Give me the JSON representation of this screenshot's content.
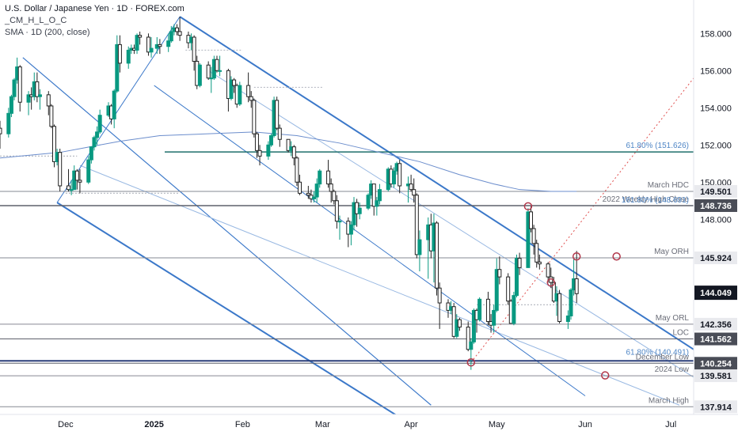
{
  "header": {
    "title": "U.S. Dollar / Japanese Yen · 1D · FOREX.com",
    "indicator1": "_CM_H_L_O_C",
    "indicator2": "SMA · 1D (200, close)"
  },
  "chart_data": {
    "type": "candlestick",
    "symbol": "USDJPY",
    "timeframe": "1D",
    "ylim": [
      137.5,
      159.8
    ],
    "xlim": [
      "2024-11-08",
      "2025-07-09"
    ],
    "x_ticks": [
      {
        "label": "Dec",
        "date": "2024-12-01",
        "bold": false
      },
      {
        "label": "2025",
        "date": "2025-01-01",
        "bold": true
      },
      {
        "label": "Feb",
        "date": "2025-02-01",
        "bold": false
      },
      {
        "label": "Mar",
        "date": "2025-03-01",
        "bold": false
      },
      {
        "label": "Apr",
        "date": "2025-04-01",
        "bold": false
      },
      {
        "label": "May",
        "date": "2025-05-01",
        "bold": false
      },
      {
        "label": "Jun",
        "date": "2025-06-01",
        "bold": false
      },
      {
        "label": "Jul",
        "date": "2025-07-01",
        "bold": false
      }
    ],
    "y_ticks": [
      158.0,
      156.0,
      154.0,
      152.0,
      150.0,
      148.0
    ],
    "y_tick_labels": [
      "158.000",
      "156.000",
      "154.000",
      "152.000",
      "150.000",
      "148.000"
    ],
    "candles": [
      [
        "2024-11-08",
        152.9,
        153.3,
        151.8,
        152.6
      ],
      [
        "2024-11-11",
        152.6,
        154.0,
        152.4,
        153.7
      ],
      [
        "2024-11-12",
        153.7,
        154.7,
        153.5,
        154.6
      ],
      [
        "2024-11-13",
        154.6,
        155.6,
        154.4,
        155.5
      ],
      [
        "2024-11-14",
        155.5,
        156.7,
        155.3,
        156.2
      ],
      [
        "2024-11-15",
        156.2,
        156.3,
        153.8,
        154.3
      ],
      [
        "2024-11-18",
        154.3,
        154.9,
        153.6,
        154.7
      ],
      [
        "2024-11-19",
        154.7,
        155.1,
        153.9,
        154.6
      ],
      [
        "2024-11-20",
        154.6,
        155.9,
        154.4,
        155.4
      ],
      [
        "2024-11-21",
        155.4,
        155.9,
        154.3,
        154.6
      ],
      [
        "2024-11-22",
        154.6,
        155.0,
        153.9,
        154.7
      ],
      [
        "2024-11-25",
        154.7,
        154.9,
        153.6,
        154.1
      ],
      [
        "2024-11-26",
        154.1,
        154.2,
        152.9,
        153.0
      ],
      [
        "2024-11-27",
        153.0,
        153.1,
        150.8,
        151.1
      ],
      [
        "2024-11-28",
        151.1,
        151.8,
        150.9,
        151.6
      ],
      [
        "2024-11-29",
        151.6,
        151.8,
        149.5,
        149.8
      ],
      [
        "2024-12-02",
        149.8,
        150.7,
        149.5,
        149.6
      ],
      [
        "2024-12-03",
        149.6,
        150.1,
        149.3,
        149.6
      ],
      [
        "2024-12-04",
        149.6,
        150.9,
        149.6,
        150.6
      ],
      [
        "2024-12-05",
        150.6,
        150.7,
        149.6,
        150.1
      ],
      [
        "2024-12-06",
        150.1,
        150.7,
        149.4,
        150.0
      ],
      [
        "2024-12-09",
        150.0,
        151.4,
        149.9,
        151.2
      ],
      [
        "2024-12-10",
        151.2,
        151.9,
        151.0,
        151.9
      ],
      [
        "2024-12-11",
        151.9,
        152.5,
        151.7,
        152.4
      ],
      [
        "2024-12-12",
        152.4,
        153.0,
        152.0,
        152.7
      ],
      [
        "2024-12-13",
        152.7,
        153.9,
        152.6,
        153.6
      ],
      [
        "2024-12-16",
        153.6,
        154.3,
        153.5,
        154.1
      ],
      [
        "2024-12-17",
        154.1,
        154.2,
        153.1,
        153.4
      ],
      [
        "2024-12-18",
        153.4,
        155.0,
        152.9,
        154.9
      ],
      [
        "2024-12-19",
        154.9,
        157.9,
        154.8,
        157.4
      ],
      [
        "2024-12-20",
        157.4,
        157.9,
        155.9,
        156.4
      ],
      [
        "2024-12-23",
        156.4,
        157.3,
        156.1,
        157.1
      ],
      [
        "2024-12-24",
        157.1,
        157.4,
        156.9,
        157.2
      ],
      [
        "2024-12-25",
        157.2,
        157.4,
        156.9,
        157.1
      ],
      [
        "2024-12-26",
        157.1,
        158.0,
        156.9,
        157.9
      ],
      [
        "2024-12-27",
        157.9,
        158.1,
        157.4,
        157.8
      ],
      [
        "2024-12-30",
        157.8,
        158.0,
        156.8,
        157.0
      ],
      [
        "2024-12-31",
        157.0,
        157.8,
        156.7,
        157.2
      ],
      [
        "2025-01-02",
        157.2,
        157.8,
        156.9,
        157.4
      ],
      [
        "2025-01-03",
        157.4,
        157.7,
        156.9,
        157.3
      ],
      [
        "2025-01-06",
        157.3,
        158.0,
        157.0,
        157.6
      ],
      [
        "2025-01-07",
        157.6,
        158.4,
        157.5,
        158.1
      ],
      [
        "2025-01-08",
        158.1,
        158.5,
        157.9,
        158.3
      ],
      [
        "2025-01-09",
        158.3,
        158.5,
        157.9,
        158.1
      ],
      [
        "2025-01-10",
        158.1,
        158.9,
        157.6,
        157.9
      ],
      [
        "2025-01-13",
        157.9,
        158.1,
        157.2,
        157.5
      ],
      [
        "2025-01-14",
        157.5,
        158.0,
        157.1,
        157.8
      ],
      [
        "2025-01-15",
        157.8,
        157.9,
        156.0,
        156.5
      ],
      [
        "2025-01-16",
        156.5,
        156.8,
        155.0,
        155.2
      ],
      [
        "2025-01-17",
        155.2,
        156.4,
        155.1,
        156.3
      ],
      [
        "2025-01-20",
        156.3,
        156.5,
        155.5,
        155.6
      ],
      [
        "2025-01-21",
        155.6,
        156.2,
        154.8,
        155.6
      ],
      [
        "2025-01-22",
        155.6,
        156.8,
        155.5,
        156.6
      ],
      [
        "2025-01-23",
        156.6,
        156.8,
        155.9,
        156.0
      ],
      [
        "2025-01-24",
        156.0,
        156.8,
        155.7,
        156.0
      ],
      [
        "2025-01-27",
        156.0,
        156.1,
        153.8,
        154.5
      ],
      [
        "2025-01-28",
        154.5,
        155.7,
        154.4,
        155.5
      ],
      [
        "2025-01-29",
        155.5,
        155.6,
        154.8,
        155.2
      ],
      [
        "2025-01-30",
        155.2,
        155.3,
        154.0,
        154.2
      ],
      [
        "2025-01-31",
        154.2,
        155.4,
        154.1,
        155.2
      ],
      [
        "2025-02-03",
        155.2,
        155.9,
        154.3,
        154.6
      ],
      [
        "2025-02-04",
        154.6,
        154.9,
        154.0,
        154.4
      ],
      [
        "2025-02-05",
        154.4,
        154.5,
        152.4,
        152.6
      ],
      [
        "2025-02-06",
        152.6,
        152.7,
        151.3,
        151.7
      ],
      [
        "2025-02-07",
        151.7,
        152.0,
        150.9,
        151.4
      ],
      [
        "2025-02-10",
        151.4,
        152.2,
        151.2,
        152.0
      ],
      [
        "2025-02-11",
        152.0,
        152.6,
        151.9,
        152.5
      ],
      [
        "2025-02-12",
        152.5,
        154.6,
        152.4,
        154.4
      ],
      [
        "2025-02-13",
        154.4,
        154.6,
        152.8,
        152.9
      ],
      [
        "2025-02-14",
        152.9,
        153.1,
        151.9,
        152.3
      ],
      [
        "2025-02-17",
        152.3,
        152.3,
        151.6,
        151.7
      ],
      [
        "2025-02-18",
        151.7,
        152.2,
        151.4,
        151.9
      ],
      [
        "2025-02-19",
        151.9,
        152.0,
        150.9,
        151.3
      ],
      [
        "2025-02-20",
        151.3,
        151.4,
        149.8,
        150.0
      ],
      [
        "2025-02-21",
        150.0,
        150.4,
        149.3,
        149.4
      ],
      [
        "2025-02-24",
        149.4,
        149.8,
        149.1,
        149.3
      ],
      [
        "2025-02-25",
        149.3,
        149.6,
        148.9,
        149.1
      ],
      [
        "2025-02-26",
        149.1,
        149.5,
        148.9,
        149.2
      ],
      [
        "2025-02-27",
        149.2,
        150.2,
        148.9,
        149.9
      ],
      [
        "2025-02-28",
        149.9,
        150.7,
        149.7,
        150.6
      ],
      [
        "2025-03-03",
        150.6,
        151.2,
        149.7,
        149.9
      ],
      [
        "2025-03-04",
        149.9,
        150.2,
        148.9,
        149.5
      ],
      [
        "2025-03-05",
        149.5,
        149.6,
        148.8,
        149.0
      ],
      [
        "2025-03-06",
        149.0,
        149.3,
        147.5,
        147.9
      ],
      [
        "2025-03-07",
        147.9,
        148.2,
        146.9,
        147.9
      ],
      [
        "2025-03-10",
        147.9,
        148.1,
        146.5,
        147.2
      ],
      [
        "2025-03-11",
        147.2,
        147.9,
        146.6,
        147.7
      ],
      [
        "2025-03-12",
        147.7,
        149.2,
        147.4,
        148.9
      ],
      [
        "2025-03-13",
        148.9,
        149.1,
        147.6,
        148.3
      ],
      [
        "2025-03-14",
        148.3,
        148.9,
        148.0,
        148.6
      ],
      [
        "2025-03-17",
        148.6,
        149.4,
        148.5,
        149.3
      ],
      [
        "2025-03-18",
        149.3,
        150.1,
        149.1,
        149.9
      ],
      [
        "2025-03-19",
        149.9,
        149.9,
        148.2,
        148.7
      ],
      [
        "2025-03-20",
        148.7,
        149.2,
        148.2,
        149.0
      ],
      [
        "2025-03-21",
        149.0,
        149.9,
        148.8,
        149.6
      ],
      [
        "2025-03-24",
        149.6,
        150.8,
        149.5,
        150.7
      ],
      [
        "2025-03-25",
        150.7,
        150.9,
        149.7,
        149.9
      ],
      [
        "2025-03-26",
        149.9,
        150.8,
        149.7,
        150.6
      ],
      [
        "2025-03-27",
        150.6,
        151.1,
        150.4,
        151.0
      ],
      [
        "2025-03-28",
        151.0,
        151.2,
        149.4,
        149.8
      ],
      [
        "2025-03-31",
        149.8,
        150.3,
        148.9,
        149.9
      ],
      [
        "2025-04-01",
        149.9,
        150.4,
        149.5,
        149.6
      ],
      [
        "2025-04-02",
        149.6,
        150.2,
        148.9,
        149.3
      ],
      [
        "2025-04-03",
        149.3,
        149.4,
        145.9,
        146.1
      ],
      [
        "2025-04-04",
        146.1,
        147.4,
        145.2,
        146.9
      ],
      [
        "2025-04-07",
        146.9,
        148.1,
        144.8,
        147.7
      ],
      [
        "2025-04-08",
        147.7,
        148.3,
        145.9,
        146.3
      ],
      [
        "2025-04-09",
        146.3,
        148.3,
        144.6,
        147.8
      ],
      [
        "2025-04-10",
        147.8,
        147.9,
        143.9,
        144.3
      ],
      [
        "2025-04-11",
        144.3,
        144.6,
        142.1,
        143.5
      ],
      [
        "2025-04-14",
        143.5,
        143.7,
        142.7,
        143.1
      ],
      [
        "2025-04-15",
        143.1,
        143.6,
        142.9,
        143.3
      ],
      [
        "2025-04-16",
        143.3,
        143.5,
        141.6,
        141.7
      ],
      [
        "2025-04-17",
        141.7,
        142.9,
        141.6,
        142.6
      ],
      [
        "2025-04-18",
        142.6,
        142.7,
        142.0,
        142.2
      ],
      [
        "2025-04-21",
        142.2,
        142.5,
        140.9,
        141.0
      ],
      [
        "2025-04-22",
        141.0,
        141.6,
        139.9,
        141.4
      ],
      [
        "2025-04-23",
        141.4,
        143.2,
        141.3,
        143.1
      ],
      [
        "2025-04-24",
        143.1,
        143.2,
        141.9,
        142.6
      ],
      [
        "2025-04-25",
        142.6,
        143.8,
        142.5,
        143.7
      ],
      [
        "2025-04-28",
        143.7,
        144.1,
        142.3,
        142.5
      ],
      [
        "2025-04-29",
        142.5,
        142.9,
        141.9,
        142.3
      ],
      [
        "2025-04-30",
        142.3,
        143.4,
        141.9,
        143.1
      ],
      [
        "2025-05-01",
        143.1,
        145.9,
        143.0,
        145.3
      ],
      [
        "2025-05-02",
        145.3,
        146.0,
        144.5,
        144.9
      ],
      [
        "2025-05-05",
        144.9,
        145.1,
        143.4,
        143.6
      ],
      [
        "2025-05-06",
        143.6,
        143.7,
        142.4,
        142.4
      ],
      [
        "2025-05-07",
        142.4,
        144.1,
        142.3,
        143.9
      ],
      [
        "2025-05-08",
        143.9,
        146.1,
        143.8,
        145.9
      ],
      [
        "2025-05-09",
        145.9,
        146.2,
        145.0,
        145.4
      ],
      [
        "2025-05-12",
        145.4,
        148.6,
        145.4,
        148.4
      ],
      [
        "2025-05-13",
        148.4,
        148.7,
        147.3,
        147.5
      ],
      [
        "2025-05-14",
        147.5,
        147.7,
        146.1,
        146.7
      ],
      [
        "2025-05-15",
        146.7,
        146.9,
        145.4,
        145.7
      ],
      [
        "2025-05-16",
        145.7,
        146.1,
        145.3,
        145.6
      ],
      [
        "2025-05-19",
        145.6,
        145.7,
        144.6,
        144.9
      ],
      [
        "2025-05-20",
        144.9,
        145.4,
        144.3,
        144.6
      ],
      [
        "2025-05-21",
        144.6,
        144.9,
        143.5,
        143.6
      ],
      [
        "2025-05-22",
        143.6,
        144.4,
        142.8,
        144.0
      ],
      [
        "2025-05-23",
        144.0,
        144.2,
        142.4,
        142.5
      ],
      [
        "2025-05-26",
        142.5,
        143.1,
        142.1,
        142.8
      ],
      [
        "2025-05-27",
        142.8,
        144.3,
        142.6,
        144.2
      ],
      [
        "2025-05-28",
        144.2,
        145.9,
        143.9,
        144.8
      ],
      [
        "2025-05-29",
        144.8,
        146.3,
        143.5,
        144.0
      ]
    ],
    "sma200": [
      [
        "2024-11-08",
        151.3
      ],
      [
        "2024-11-29",
        151.6
      ],
      [
        "2024-12-20",
        152.2
      ],
      [
        "2025-01-03",
        152.5
      ],
      [
        "2025-01-20",
        152.6
      ],
      [
        "2025-02-05",
        152.7
      ],
      [
        "2025-02-20",
        152.5
      ],
      [
        "2025-03-07",
        152.1
      ],
      [
        "2025-03-21",
        151.6
      ],
      [
        "2025-04-04",
        151.1
      ],
      [
        "2025-04-18",
        150.4
      ],
      [
        "2025-04-30",
        149.9
      ],
      [
        "2025-05-09",
        149.6
      ],
      [
        "2025-05-20",
        149.5
      ],
      [
        "2025-05-29",
        149.5
      ]
    ],
    "levels": [
      {
        "name": "march-hdc",
        "value": 149.501,
        "label": "March HDC",
        "tag": "149.501",
        "color": "#868993",
        "line": true
      },
      {
        "name": "weekly-high-close-2022",
        "value": 148.736,
        "label": "2022 Weekly High Close",
        "tag": "148.736",
        "color": "#5d606b",
        "line": true
      },
      {
        "name": "may-orh",
        "value": 145.924,
        "label": "May ORH",
        "tag": "145.924",
        "color": "#868993",
        "line": true
      },
      {
        "name": "may-orl",
        "value": 142.356,
        "label": "May ORL",
        "tag": "142.356",
        "color": "#868993",
        "line": true
      },
      {
        "name": "loc",
        "value": 141.562,
        "label": "LOC",
        "tag": "141.562",
        "color": "#5d606b",
        "line": true
      },
      {
        "name": "fib-140",
        "value": 140.491,
        "label": "61.80% (140.491)",
        "tag": "",
        "color": "#4f86c6",
        "line": false
      },
      {
        "name": "december-low",
        "value": 140.254,
        "label": "December Low",
        "tag": "140.254",
        "color": "#5d606b",
        "line": true
      },
      {
        "name": "low-2024",
        "value": 139.581,
        "label": "2024 Low",
        "tag": "139.581",
        "color": "#868993",
        "line": true
      },
      {
        "name": "march-high",
        "value": 137.914,
        "label": "March High",
        "tag": "137.914",
        "color": "#868993",
        "line": true
      },
      {
        "name": "fib-151",
        "value": 151.626,
        "label": "61.80% (151.626)",
        "tag": "",
        "color": "#4f86c6",
        "line": false
      },
      {
        "name": "fib-148",
        "value": 148.691,
        "label": "161.80% (148.691)",
        "tag": "",
        "color": "#4f86c6",
        "line": false
      }
    ],
    "current_price": {
      "value": 144.049,
      "tag": "144.049"
    },
    "colors": {
      "up": "#089981",
      "down": "#222222",
      "sma": "#6b8dcc",
      "channel": "#3b78c9",
      "channel_light": "#98b8e2",
      "accent_circle": "#b2374a",
      "dotted_trend": "#e0504f",
      "teal_line": "#1f6f6b",
      "navy_line": "#2a3f7a"
    }
  }
}
